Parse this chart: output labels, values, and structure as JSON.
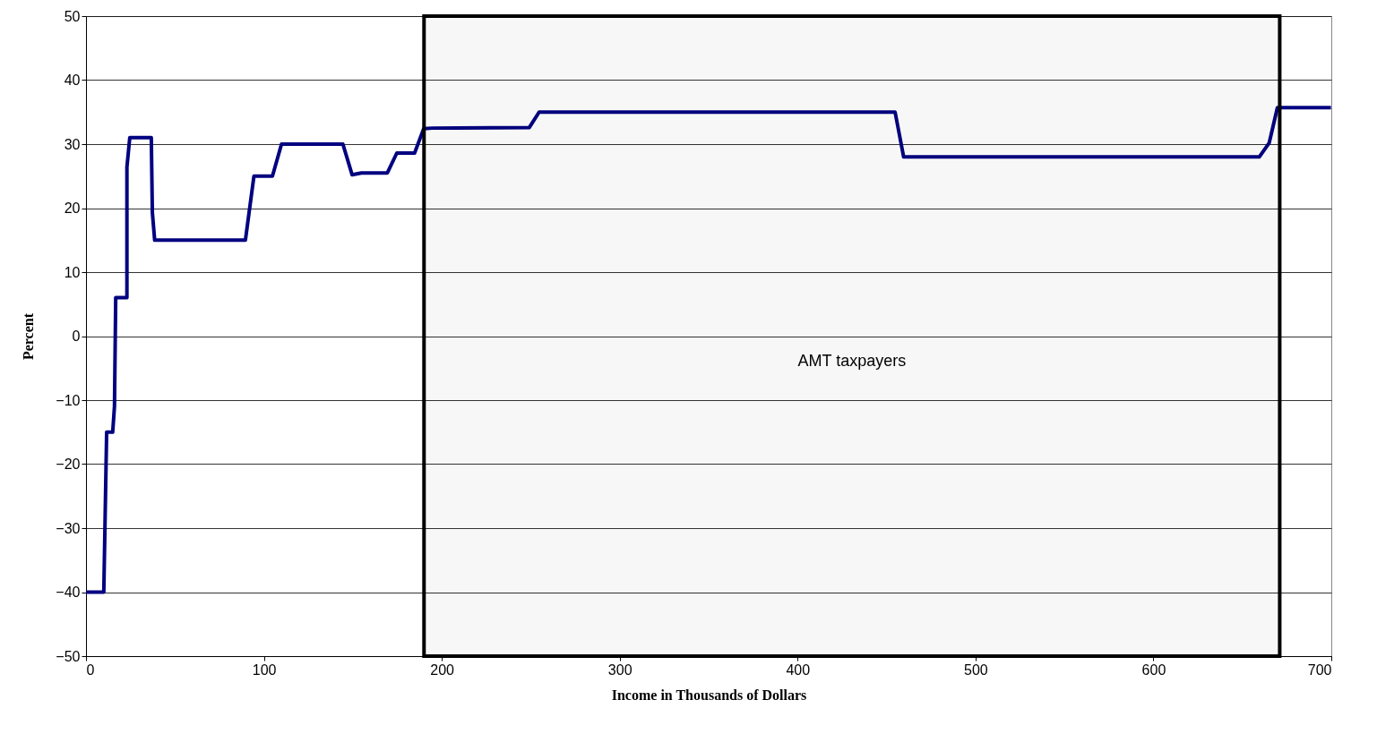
{
  "chart_data": {
    "type": "line",
    "xlabel": "Income in Thousands of Dollars",
    "ylabel": "Percent",
    "x": [
      0,
      10,
      11.6,
      15,
      16,
      16.7,
      23,
      23,
      24.6,
      36.7,
      37.3,
      38.6,
      89.6,
      94.4,
      104.8,
      109.9,
      144.4,
      149.6,
      154.8,
      169.4,
      174.7,
      184.7,
      189.8,
      194.5,
      249.2,
      254.7,
      454.8,
      459.6,
      659.5,
      665.1,
      669.7,
      699.8
    ],
    "series": [
      {
        "color": "#000080",
        "values": [
          -40,
          -40,
          -15,
          -15,
          -11,
          6,
          6,
          26.4,
          31,
          31,
          19.3,
          15,
          15,
          25,
          25,
          30,
          30,
          25.2,
          25.5,
          25.5,
          28.6,
          28.6,
          32.4,
          32.5,
          32.6,
          35,
          35,
          28,
          28,
          30.2,
          35.7,
          35.7
        ]
      }
    ],
    "xlim": [
      0,
      700
    ],
    "xticks": [
      0,
      100,
      200,
      300,
      400,
      500,
      600,
      700
    ],
    "ylim": [
      -50,
      50
    ],
    "yticks": [
      -50,
      -40,
      -30,
      -20,
      -10,
      0,
      10,
      20,
      30,
      40,
      50
    ],
    "grid": "y",
    "marker": "none",
    "line_style": "solid",
    "bands": [
      {
        "axis": "x",
        "from": 190,
        "to": 671,
        "label": "AMT taxpayers",
        "color": "#000000"
      }
    ]
  }
}
